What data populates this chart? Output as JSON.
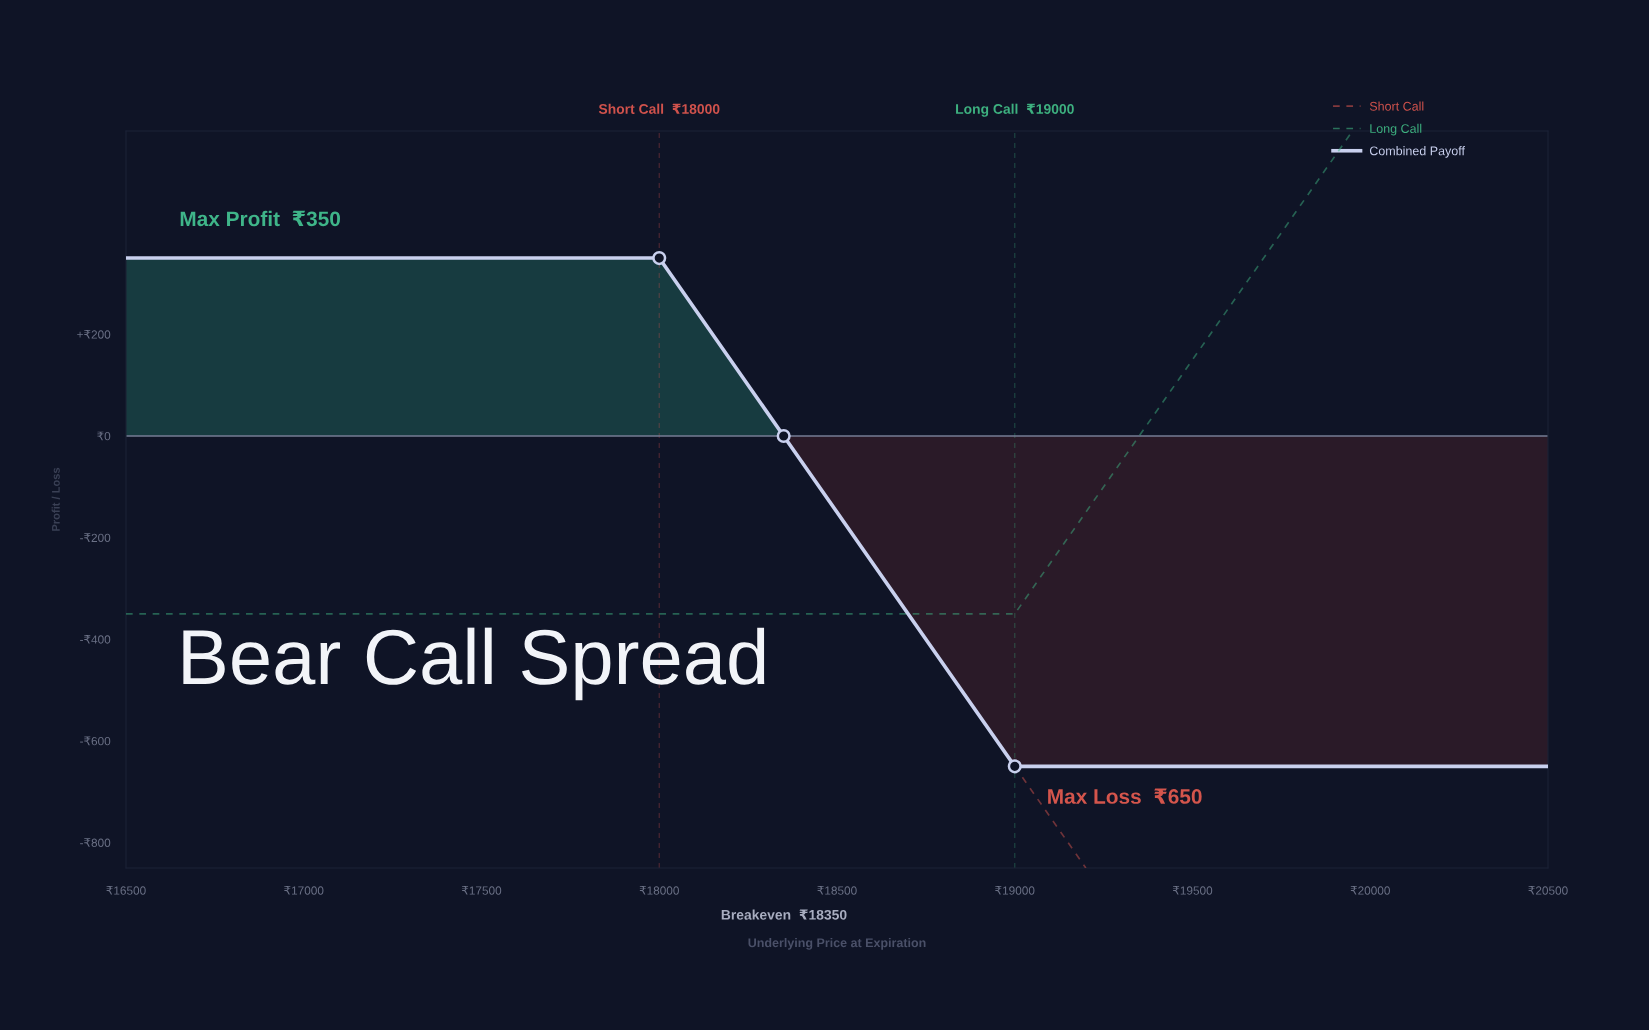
{
  "chart_data": {
    "type": "line",
    "title": "Bear Call Spread",
    "xlabel": "Underlying Price at Expiration",
    "ylabel": "Profit / Loss",
    "xlim": [
      16500,
      20500
    ],
    "xticks": [
      {
        "value": 16500,
        "label": "₹16500"
      },
      {
        "value": 17000,
        "label": "₹17000"
      },
      {
        "value": 17500,
        "label": "₹17500"
      },
      {
        "value": 18000,
        "label": "₹18000"
      },
      {
        "value": 18500,
        "label": "₹18500"
      },
      {
        "value": 19000,
        "label": "₹19000"
      },
      {
        "value": 19500,
        "label": "₹19500"
      },
      {
        "value": 20000,
        "label": "₹20000"
      },
      {
        "value": 20500,
        "label": "₹20500"
      }
    ],
    "ylim": [
      -850,
      600
    ],
    "yticks": [
      {
        "value": 200,
        "label": "+₹200"
      },
      {
        "value": 0,
        "label": "₹0"
      },
      {
        "value": -200,
        "label": "-₹200"
      },
      {
        "value": -400,
        "label": "-₹400"
      },
      {
        "value": -600,
        "label": "-₹600"
      },
      {
        "value": -800,
        "label": "-₹800"
      }
    ],
    "series": [
      {
        "type": "area",
        "color": "#173b40",
        "x": [
          16500,
          18000,
          18350
        ],
        "values": [
          350,
          350,
          0
        ]
      },
      {
        "type": "area",
        "color": "#2a1a28",
        "x": [
          18350,
          19000,
          20500
        ],
        "values": [
          0,
          -650,
          -650
        ]
      },
      {
        "name": "Short Call",
        "color": "#d0524c",
        "line_style": "dashed",
        "x": [
          19000,
          19200
        ],
        "values": [
          -650,
          -850
        ]
      },
      {
        "name": "Long Call",
        "color": "#3db07f",
        "line_style": "dashed",
        "x": [
          16500,
          19000,
          19950
        ],
        "values": [
          -350,
          -350,
          600
        ]
      },
      {
        "name": "Combined Payoff",
        "color": "#c9d0ee",
        "line_style": "solid",
        "x": [
          16500,
          18000,
          18350,
          19000,
          20500
        ],
        "values": [
          350,
          350,
          0,
          -650,
          -650
        ]
      },
      {
        "type": "scatter",
        "color": "#c9d0ee",
        "marker": "circle",
        "x": [
          18000,
          18350,
          19000
        ],
        "values": [
          350,
          0,
          -650
        ]
      }
    ],
    "ref_lines": [
      {
        "axis": "y",
        "value": 0,
        "color": "#767d94",
        "line_style": "solid"
      },
      {
        "axis": "x",
        "value": 18000,
        "label": "Short Call  ₹18000",
        "color": "#d0524c",
        "line_style": "dashed"
      },
      {
        "axis": "x",
        "value": 19000,
        "label": "Long Call  ₹19000",
        "color": "#3db07f",
        "line_style": "dashed"
      }
    ],
    "annotations": [
      {
        "text": "Max Profit  ₹350",
        "x": 16650,
        "y": 350
      },
      {
        "text": "Max Loss  ₹650",
        "x": 19090,
        "y": -650
      },
      "Breakeven  ₹18350"
    ],
    "legend": "top right"
  }
}
